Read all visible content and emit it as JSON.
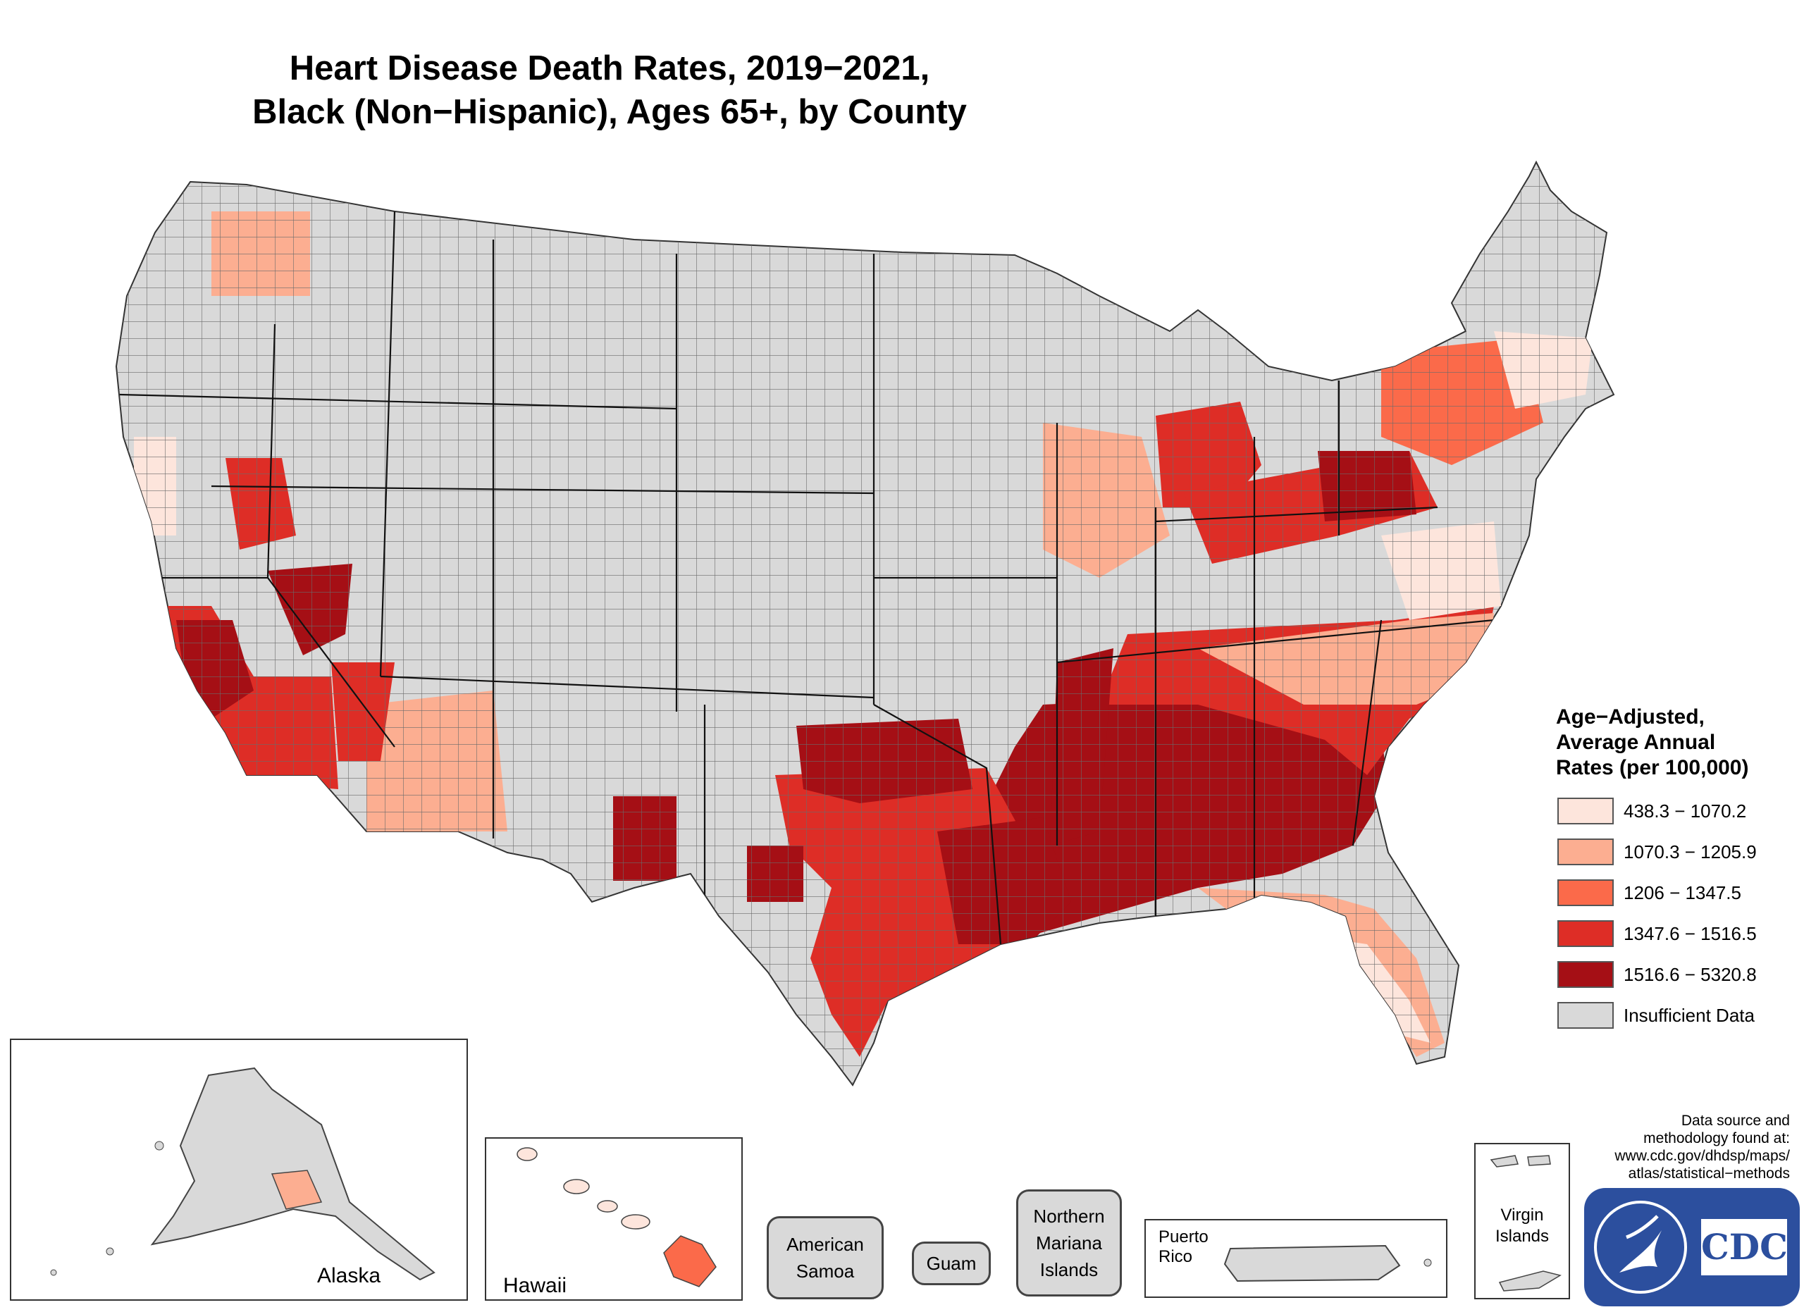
{
  "title": {
    "line1": "Heart Disease Death Rates, 2019−2021,",
    "line2": "Black (Non−Hispanic), Ages 65+, by County"
  },
  "legend": {
    "title_lines": [
      "Age−Adjusted,",
      "Average Annual",
      "Rates (per 100,000)"
    ],
    "items": [
      {
        "label": "438.3 − 1070.2",
        "color": "#fde5dc"
      },
      {
        "label": "1070.3 − 1205.9",
        "color": "#fcae91"
      },
      {
        "label": "1206 − 1347.5",
        "color": "#fb6a4a"
      },
      {
        "label": "1347.6 − 1516.5",
        "color": "#de2d26"
      },
      {
        "label": "1516.6 − 5320.8",
        "color": "#a50f15"
      },
      {
        "label": "Insufficient Data",
        "color": "#d9d9d9"
      }
    ]
  },
  "insets": {
    "alaska": "Alaska",
    "hawaii": "Hawaii",
    "american_samoa": "American\nSamoa",
    "guam": "Guam",
    "northern_mariana": "Northern\nMariana\nIslands",
    "puerto_rico": "Puerto\nRico",
    "virgin_islands": "Virgin\nIslands"
  },
  "source": "Data source and\nmethodology found at:\nwww.cdc.gov/dhdsp/maps/\natlas/statistical−methods",
  "logo": {
    "text": "CDC"
  },
  "colors": {
    "insufficient": "#d9d9d9",
    "border": "#555555"
  }
}
